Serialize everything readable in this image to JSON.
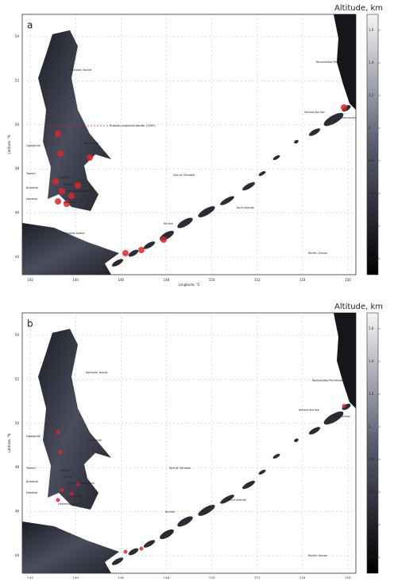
{
  "colorbar_title": "Altitude, km",
  "colorbar_ticks": [
    "1.6",
    "1.4",
    "1.2",
    "1",
    "0.8",
    "0.6",
    "0.4",
    "0.2"
  ],
  "x_ticks": [
    "142",
    "144",
    "146",
    "148",
    "150",
    "152",
    "154",
    "156"
  ],
  "y_ticks": [
    "54",
    "52",
    "50",
    "48",
    "46",
    "44"
  ],
  "x_axis_label": "Longitude, °E",
  "y_axis_label": "Latitude, °N",
  "panels": [
    {
      "label": "a",
      "places": [
        "Sakhalin Island",
        "Kamchatka Peninsula",
        "Severo-Kurilsk",
        "Ozernovsky",
        "Russian-Japanese border (1905)",
        "Uglegorsk",
        "Poronaysk",
        "Tomari",
        "Kholmsk",
        "Nevelsk",
        "Dolinsk",
        "Aniva",
        "Yuzhno-Sakhalinsk",
        "Korsakov",
        "Sea of Okhotsk",
        "Kurilsk",
        "Kuril Islands",
        "Hokkaido Island",
        "Pacific Ocean"
      ]
    },
    {
      "label": "b",
      "places": [
        "Sakhalin Island",
        "Kamchatka Peninsula",
        "Severo-Kurilsk",
        "Ozernovsky",
        "Uglegorsk",
        "Poronaysk",
        "Tomari",
        "Kholmsk",
        "Nevelsk",
        "Dolinsk",
        "Aniva",
        "Yuzhno-Sakhalinsk",
        "Korsakov",
        "Sea of Okhotsk",
        "Kurilsk",
        "Kuril Islands",
        "Hokkaido Island",
        "Pacific Ocean"
      ]
    }
  ]
}
